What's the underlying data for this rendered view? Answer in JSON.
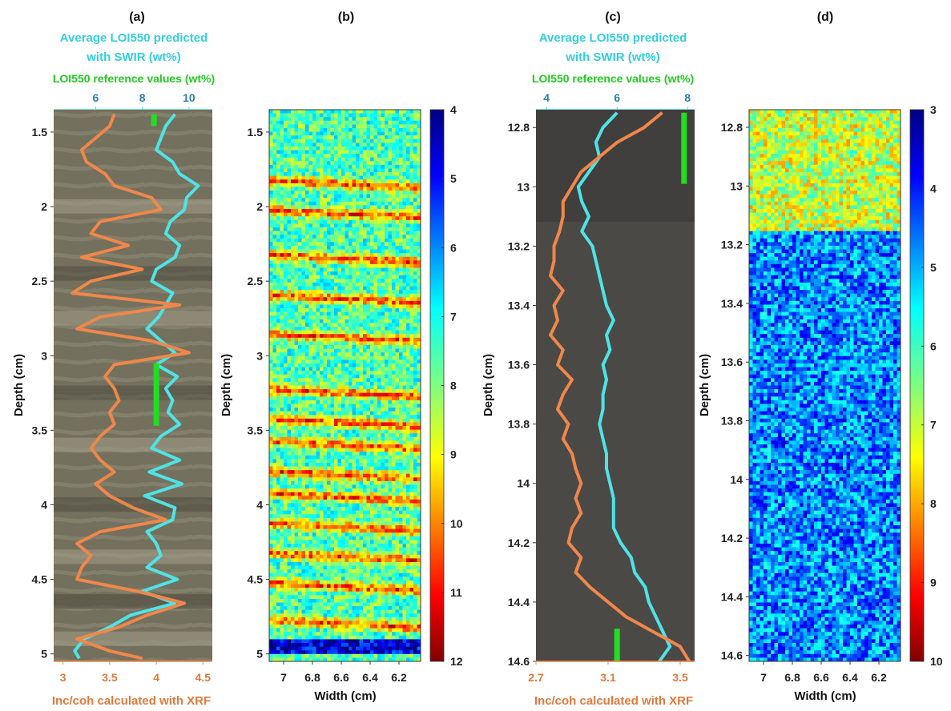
{
  "colors": {
    "swir": "#4fe3e6",
    "reference": "#22dd22",
    "xrf": "#f0874a",
    "swir_axis_text": "#33cfe0",
    "swir_tick_text": "#2a7fb0",
    "reference_text": "#22cc22",
    "xrf_text": "#e07a3c",
    "photo_a": "#6f6c5b",
    "photo_c": "#4a4946"
  },
  "chart_data": [
    {
      "id": "a",
      "type": "line",
      "panel_label": "(a)",
      "top_title_line1": "Average LOI550 predicted",
      "top_title_line2": "with SWIR (wt%)",
      "reference_title": "LOI550 reference values (wt%)",
      "xlabel": "Inc/coh calculated with XRF",
      "ylabel": "Depth (cm)",
      "ylim": [
        1.35,
        5.05
      ],
      "yticks": [
        "1.5",
        "2",
        "2.5",
        "3",
        "3.5",
        "4",
        "4.5",
        "5"
      ],
      "top_axis": {
        "lim": [
          4.2,
          11.0
        ],
        "ticks": [
          "6",
          "8",
          "10"
        ]
      },
      "bottom_axis": {
        "lim": [
          2.9,
          4.6
        ],
        "ticks": [
          "3",
          "3.5",
          "4",
          "4.5"
        ]
      },
      "series": [
        {
          "key": "swir",
          "axis": "top",
          "depth": [
            1.38,
            1.46,
            1.54,
            1.62,
            1.7,
            1.78,
            1.86,
            1.94,
            2.02,
            2.1,
            2.18,
            2.26,
            2.34,
            2.42,
            2.5,
            2.58,
            2.66,
            2.74,
            2.82,
            2.9,
            2.98,
            3.06,
            3.14,
            3.22,
            3.3,
            3.38,
            3.46,
            3.54,
            3.62,
            3.7,
            3.78,
            3.86,
            3.94,
            4.02,
            4.1,
            4.18,
            4.26,
            4.34,
            4.42,
            4.5,
            4.58,
            4.66,
            4.74,
            4.82,
            4.9,
            4.98,
            5.03
          ],
          "values": [
            9.4,
            9.0,
            8.8,
            8.6,
            9.3,
            9.6,
            10.4,
            9.9,
            9.8,
            9.2,
            9.0,
            9.6,
            9.4,
            8.6,
            8.4,
            9.3,
            9.0,
            8.7,
            8.2,
            8.8,
            9.4,
            8.6,
            9.5,
            9.0,
            9.3,
            9.1,
            9.6,
            8.8,
            8.4,
            9.6,
            8.3,
            9.7,
            8.1,
            9.4,
            9.3,
            8.2,
            8.6,
            8.8,
            8.2,
            9.5,
            8.0,
            9.4,
            7.5,
            6.6,
            5.5,
            5.1,
            5.3
          ]
        },
        {
          "key": "xrf",
          "axis": "bottom",
          "depth": [
            1.38,
            1.46,
            1.54,
            1.62,
            1.7,
            1.78,
            1.86,
            1.94,
            2.02,
            2.1,
            2.18,
            2.26,
            2.34,
            2.42,
            2.5,
            2.58,
            2.66,
            2.74,
            2.82,
            2.9,
            2.98,
            3.06,
            3.14,
            3.22,
            3.3,
            3.38,
            3.46,
            3.54,
            3.62,
            3.7,
            3.78,
            3.86,
            3.94,
            4.02,
            4.1,
            4.18,
            4.26,
            4.34,
            4.42,
            4.5,
            4.58,
            4.66,
            4.74,
            4.82,
            4.9,
            4.98,
            5.03
          ],
          "values": [
            3.55,
            3.5,
            3.35,
            3.2,
            3.25,
            3.45,
            3.55,
            3.95,
            4.05,
            3.4,
            3.3,
            3.7,
            3.2,
            3.85,
            3.3,
            3.1,
            4.25,
            3.4,
            3.15,
            3.95,
            4.35,
            3.55,
            3.45,
            3.55,
            3.6,
            3.5,
            3.55,
            3.4,
            3.3,
            3.4,
            3.55,
            3.35,
            3.5,
            3.75,
            4.1,
            3.4,
            3.15,
            3.3,
            3.2,
            3.15,
            3.8,
            4.3,
            3.9,
            3.6,
            3.15,
            3.5,
            3.85
          ]
        },
        {
          "key": "reference",
          "axis": "top",
          "segments": [
            {
              "value": 8.5,
              "depth": [
                1.38,
                1.46
              ]
            },
            {
              "value": 8.6,
              "depth": [
                3.05,
                3.47
              ]
            }
          ]
        }
      ]
    },
    {
      "id": "b",
      "type": "heatmap",
      "panel_label": "(b)",
      "xlabel": "Width (cm)",
      "ylabel": "Depth (cm)",
      "ylim": [
        1.35,
        5.05
      ],
      "yticks": [
        "1.5",
        "2",
        "2.5",
        "3",
        "3.5",
        "4",
        "4.5",
        "5"
      ],
      "xlim": [
        7.1,
        6.05
      ],
      "xticks": [
        "7",
        "6.8",
        "6.6",
        "6.4",
        "6.2"
      ],
      "colorbar": {
        "range": [
          4,
          12
        ],
        "ticks": [
          "4",
          "5",
          "6",
          "7",
          "8",
          "9",
          "10",
          "11",
          "12"
        ],
        "colormap": "jet (reversed: high = red)"
      },
      "high_value_bands_depth": [
        1.85,
        2.05,
        2.35,
        2.62,
        2.88,
        3.25,
        3.45,
        3.6,
        3.8,
        3.95,
        4.15,
        4.35,
        4.55,
        4.8
      ],
      "low_value_band_depth": [
        4.9,
        5.0
      ]
    },
    {
      "id": "c",
      "type": "line",
      "panel_label": "(c)",
      "top_title_line1": "Average LOI550 predicted",
      "top_title_line2": "with SWIR (wt%)",
      "reference_title": "LOI550 reference values (wt%)",
      "xlabel": "Inc/coh calculated with XRF",
      "ylabel": "Depth (cm)",
      "ylim": [
        12.74,
        14.6
      ],
      "yticks": [
        "12.8",
        "13",
        "13.2",
        "13.4",
        "13.6",
        "13.8",
        "14",
        "14.2",
        "14.4",
        "14.6"
      ],
      "top_axis": {
        "lim": [
          3.7,
          8.2
        ],
        "ticks": [
          "4",
          "6",
          "8"
        ]
      },
      "bottom_axis": {
        "lim": [
          2.7,
          3.58
        ],
        "ticks": [
          "2.7",
          "3.1",
          "3.5"
        ]
      },
      "series": [
        {
          "key": "swir",
          "axis": "top",
          "depth": [
            12.75,
            12.8,
            12.85,
            12.9,
            12.95,
            13.0,
            13.05,
            13.1,
            13.15,
            13.2,
            13.25,
            13.3,
            13.35,
            13.4,
            13.45,
            13.5,
            13.55,
            13.6,
            13.65,
            13.7,
            13.75,
            13.8,
            13.85,
            13.9,
            13.95,
            14.0,
            14.05,
            14.1,
            14.15,
            14.2,
            14.25,
            14.3,
            14.35,
            14.4,
            14.45,
            14.5,
            14.55,
            14.6
          ],
          "values": [
            6.0,
            5.6,
            5.4,
            5.5,
            5.2,
            4.9,
            5.0,
            5.2,
            5.0,
            5.3,
            5.4,
            5.5,
            5.6,
            5.7,
            5.9,
            5.7,
            5.8,
            5.6,
            5.7,
            5.6,
            5.6,
            5.5,
            5.6,
            5.7,
            5.7,
            5.8,
            5.9,
            5.9,
            5.9,
            6.1,
            6.4,
            6.5,
            6.8,
            6.9,
            7.1,
            7.3,
            7.5,
            7.2
          ]
        },
        {
          "key": "xrf",
          "axis": "bottom",
          "depth": [
            12.75,
            12.8,
            12.85,
            12.9,
            12.95,
            13.0,
            13.05,
            13.1,
            13.15,
            13.2,
            13.25,
            13.3,
            13.35,
            13.4,
            13.45,
            13.5,
            13.55,
            13.6,
            13.65,
            13.7,
            13.75,
            13.8,
            13.85,
            13.9,
            13.95,
            14.0,
            14.05,
            14.1,
            14.15,
            14.2,
            14.25,
            14.3,
            14.35,
            14.4,
            14.45,
            14.5,
            14.55,
            14.6
          ],
          "values": [
            3.4,
            3.3,
            3.15,
            3.05,
            2.95,
            2.9,
            2.85,
            2.85,
            2.83,
            2.8,
            2.8,
            2.78,
            2.85,
            2.8,
            2.82,
            2.78,
            2.85,
            2.82,
            2.9,
            2.85,
            2.82,
            2.88,
            2.85,
            2.9,
            2.92,
            2.95,
            2.92,
            2.95,
            2.9,
            2.88,
            2.95,
            2.92,
            3.0,
            3.1,
            3.2,
            3.35,
            3.5,
            3.55
          ]
        },
        {
          "key": "reference",
          "axis": "top",
          "segments": [
            {
              "value": 7.9,
              "depth": [
                12.75,
                12.99
              ]
            },
            {
              "value": 6.0,
              "depth": [
                14.49,
                14.6
              ]
            }
          ]
        }
      ]
    },
    {
      "id": "d",
      "type": "heatmap",
      "panel_label": "(d)",
      "xlabel": "Width (cm)",
      "ylabel": "Depth (cm)",
      "ylim": [
        12.74,
        14.62
      ],
      "yticks": [
        "12.8",
        "13",
        "13.2",
        "13.4",
        "13.6",
        "13.8",
        "14",
        "14.2",
        "14.4",
        "14.6"
      ],
      "xlim": [
        7.1,
        6.05
      ],
      "xticks": [
        "7",
        "6.8",
        "6.6",
        "6.4",
        "6.2"
      ],
      "colorbar": {
        "range": [
          3,
          10
        ],
        "ticks": [
          "3",
          "4",
          "5",
          "6",
          "7",
          "8",
          "9",
          "10"
        ],
        "colormap": "jet (reversed: high = red)"
      },
      "transition_depth": 13.15,
      "upper_level": 7.0,
      "lower_level": 4.8
    }
  ]
}
